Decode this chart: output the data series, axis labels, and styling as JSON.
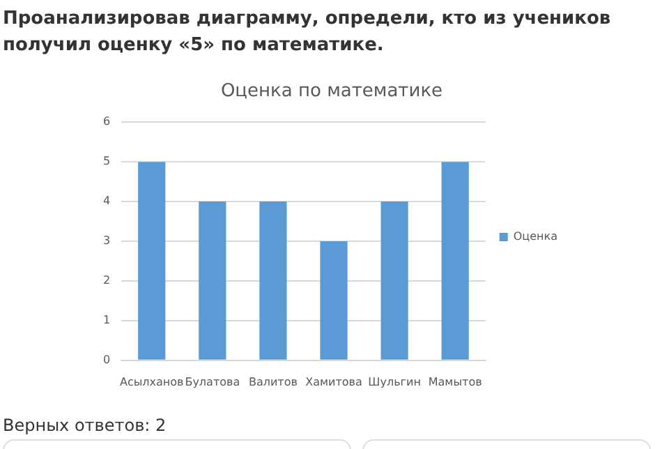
{
  "chart_data": {
    "type": "bar",
    "title": "Оценка по математике",
    "categories": [
      "Асылханов",
      "Булатова",
      "Валитов",
      "Хамитова",
      "Шульгин",
      "Мамытов"
    ],
    "series": [
      {
        "name": "Оценка",
        "color": "#5b9bd5",
        "values": [
          5,
          4,
          4,
          3,
          4,
          5
        ]
      }
    ],
    "ylim": [
      0,
      6
    ],
    "yticks": [
      0,
      1,
      2,
      3,
      4,
      5,
      6
    ],
    "grid": "y",
    "legend": "right",
    "annotations": [
      "Проанализировав диаграмму, определи, кто из учеников получил оценку «5» по математике.",
      "Верных ответов: 2"
    ]
  }
}
